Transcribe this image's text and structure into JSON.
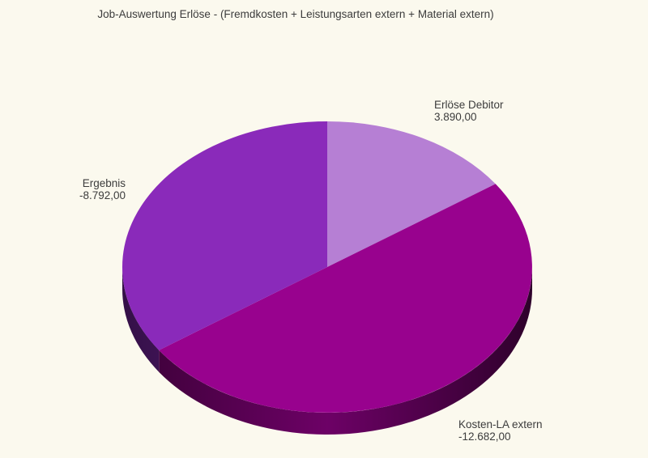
{
  "background": "#FBF9EE",
  "text_color": "#3C3C3C",
  "chart_data": {
    "type": "pie",
    "style": "3d",
    "title": "Job-Auswertung Erlöse - (Fremdkosten + Leistungsarten extern + Material extern)",
    "start_angle_deg": 90,
    "direction": "clockwise",
    "legend_position": "none",
    "slices": [
      {
        "label": "Erlöse Debitor",
        "value": 3890,
        "value_text": "3.890,00",
        "color": "#B67FD4"
      },
      {
        "label": "Kosten-LA extern",
        "value": -12682,
        "value_text": "-12.682,00",
        "color": "#98028E"
      },
      {
        "label": "Ergebnis",
        "value": -8792,
        "value_text": "-8.792,00",
        "color": "#8A2ABA"
      }
    ]
  }
}
